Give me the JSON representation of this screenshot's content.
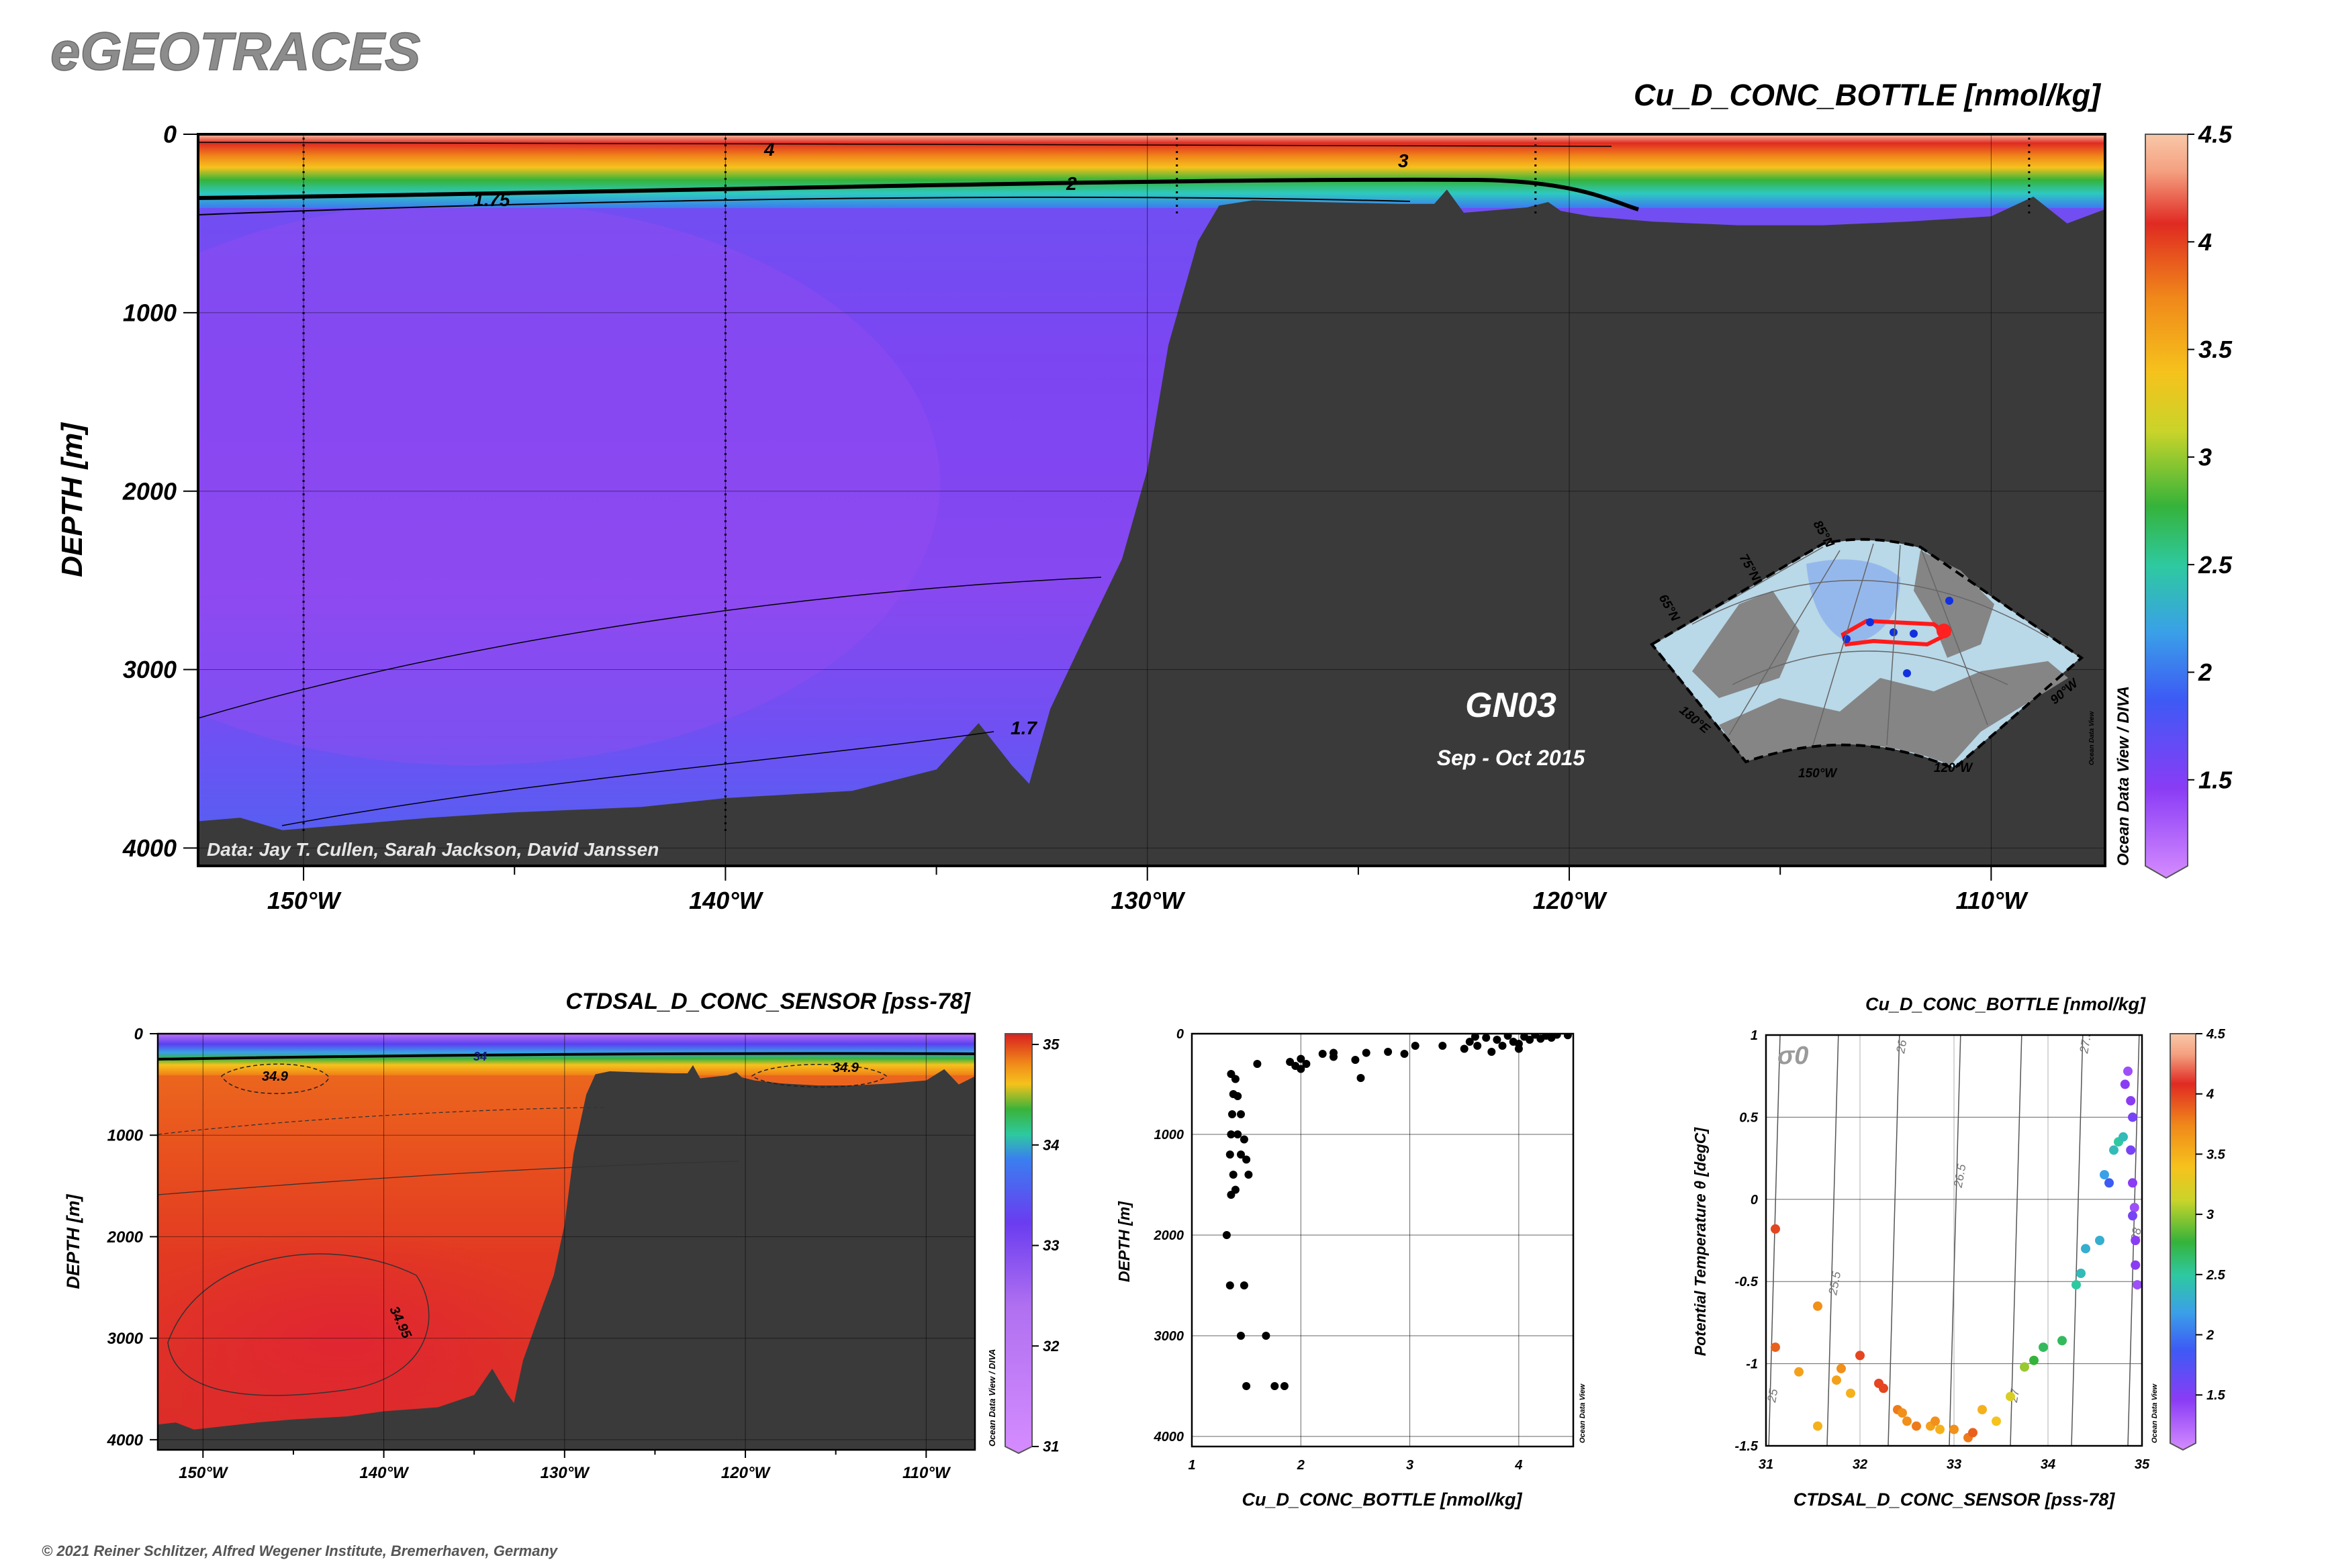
{
  "header": {
    "brand": "eGEOTRACES"
  },
  "footer": {
    "copyright": "© 2021 Reiner Schlitzer, Alfred Wegener Institute, Bremerhaven, Germany"
  },
  "watermark": {
    "odv_diva": "Ocean Data View / DIVA",
    "odv": "Ocean Data View"
  },
  "colors": {
    "seafloor": "#3a3a3a",
    "frame": "#000000",
    "contour": "#000000",
    "track": "#ff1a1a",
    "station": "#1030e0"
  },
  "chart_data": [
    {
      "id": "main_section",
      "type": "heatmap",
      "title": "Cu_D_CONC_BOTTLE [nmol/kg]",
      "ylabel": "DEPTH [m]",
      "xlabel": "",
      "xlim": [
        -152.5,
        -107.3
      ],
      "ylim": [
        4100,
        0
      ],
      "x_ticks": [
        -150,
        -140,
        -130,
        -120,
        -110
      ],
      "x_tick_labels": [
        "150°W",
        "140°W",
        "130°W",
        "120°W",
        "110°W"
      ],
      "y_ticks": [
        0,
        1000,
        2000,
        3000,
        4000
      ],
      "y_tick_labels": [
        "0",
        "1000",
        "2000",
        "3000",
        "4000"
      ],
      "colorbar": {
        "min": 1.1,
        "max": 4.5,
        "ticks": [
          1.5,
          2,
          2.5,
          3,
          3.5,
          4,
          4.5
        ],
        "tick_labels": [
          "1.5",
          "2",
          "2.5",
          "3",
          "3.5",
          "4",
          "4.5"
        ]
      },
      "contour_labels": [
        "4",
        "3",
        "2",
        "1.75",
        "1.7"
      ],
      "station_longitudes": [
        -150.0,
        -140.0,
        -129.3,
        -120.8,
        -109.1
      ],
      "seafloor": {
        "lon": [
          -152.5,
          -151.5,
          -150.5,
          -149,
          -147,
          -145,
          -142,
          -140,
          -137,
          -135,
          -134,
          -133.2,
          -132.8,
          -132.3,
          -131.5,
          -130.6,
          -130,
          -129.5,
          -128.8,
          -128.3,
          -127.5,
          -126,
          -124,
          -123.2,
          -122.9,
          -122.5,
          -121,
          -120.5,
          -120.2,
          -119.5,
          -118,
          -116,
          -114,
          -112,
          -110,
          -109,
          -108.2,
          -107.3
        ],
        "depth": [
          3850,
          3830,
          3900,
          3870,
          3830,
          3800,
          3770,
          3720,
          3680,
          3560,
          3300,
          3540,
          3640,
          3220,
          2820,
          2380,
          1880,
          1180,
          600,
          400,
          370,
          380,
          390,
          390,
          310,
          440,
          410,
          380,
          430,
          460,
          490,
          510,
          510,
          490,
          460,
          350,
          500,
          420
        ]
      },
      "inset_map": {
        "label": "GN03",
        "date": "Sep - Oct 2015",
        "lat_labels": [
          "85°N",
          "75°N",
          "65°N"
        ],
        "lon_labels": [
          "180°E",
          "150°W",
          "120°W",
          "90°W"
        ]
      },
      "data_credit": "Data: Jay T. Cullen, Sarah Jackson, David Janssen"
    },
    {
      "id": "salinity_section",
      "type": "heatmap",
      "title": "CTDSAL_D_CONC_SENSOR [pss-78]",
      "ylabel": "DEPTH [m]",
      "xlim": [
        -152.5,
        -107.3
      ],
      "ylim": [
        4100,
        0
      ],
      "x_ticks": [
        -150,
        -140,
        -130,
        -120,
        -110
      ],
      "x_tick_labels": [
        "150°W",
        "140°W",
        "130°W",
        "120°W",
        "110°W"
      ],
      "y_ticks": [
        0,
        1000,
        2000,
        3000,
        4000
      ],
      "y_tick_labels": [
        "0",
        "1000",
        "2000",
        "3000",
        "4000"
      ],
      "colorbar": {
        "min": 31,
        "max": 35,
        "ticks": [
          31,
          32,
          33,
          34,
          35
        ],
        "tick_labels": [
          "31",
          "32",
          "33",
          "34",
          "35"
        ]
      },
      "contour_labels": [
        "34",
        "34.9",
        "34.9",
        "34.95"
      ]
    },
    {
      "id": "profile",
      "type": "scatter",
      "xlabel": "Cu_D_CONC_BOTTLE [nmol/kg]",
      "ylabel": "DEPTH [m]",
      "xlim": [
        1,
        4.5
      ],
      "ylim": [
        4100,
        0
      ],
      "x_ticks": [
        1,
        2,
        3,
        4
      ],
      "x_tick_labels": [
        "1",
        "2",
        "3",
        "4"
      ],
      "y_ticks": [
        0,
        1000,
        2000,
        3000,
        4000
      ],
      "y_tick_labels": [
        "0",
        "1000",
        "2000",
        "3000",
        "4000"
      ],
      "points": [
        [
          1.36,
          400
        ],
        [
          1.4,
          450
        ],
        [
          1.38,
          600
        ],
        [
          1.42,
          620
        ],
        [
          1.37,
          800
        ],
        [
          1.45,
          800
        ],
        [
          1.36,
          1000
        ],
        [
          1.42,
          1000
        ],
        [
          1.48,
          1050
        ],
        [
          1.35,
          1200
        ],
        [
          1.45,
          1200
        ],
        [
          1.5,
          1250
        ],
        [
          1.38,
          1400
        ],
        [
          1.52,
          1400
        ],
        [
          1.4,
          1550
        ],
        [
          1.36,
          1600
        ],
        [
          1.32,
          2000
        ],
        [
          1.35,
          2500
        ],
        [
          1.48,
          2500
        ],
        [
          1.45,
          3000
        ],
        [
          1.68,
          3000
        ],
        [
          1.5,
          3500
        ],
        [
          1.76,
          3500
        ],
        [
          1.85,
          3500
        ],
        [
          1.6,
          300
        ],
        [
          1.9,
          280
        ],
        [
          1.95,
          320
        ],
        [
          2.0,
          350
        ],
        [
          2.05,
          300
        ],
        [
          2.0,
          250
        ],
        [
          2.2,
          200
        ],
        [
          2.3,
          230
        ],
        [
          2.5,
          260
        ],
        [
          2.55,
          440
        ],
        [
          2.3,
          190
        ],
        [
          2.6,
          190
        ],
        [
          2.8,
          180
        ],
        [
          2.95,
          200
        ],
        [
          3.05,
          120
        ],
        [
          3.3,
          120
        ],
        [
          3.5,
          150
        ],
        [
          3.55,
          80
        ],
        [
          3.62,
          120
        ],
        [
          3.7,
          40
        ],
        [
          3.8,
          60
        ],
        [
          3.9,
          20
        ],
        [
          3.95,
          80
        ],
        [
          4.0,
          150
        ],
        [
          4.05,
          30
        ],
        [
          4.1,
          60
        ],
        [
          4.15,
          10
        ],
        [
          4.25,
          20
        ],
        [
          4.3,
          40
        ],
        [
          4.35,
          10
        ],
        [
          4.45,
          15
        ],
        [
          3.85,
          120
        ],
        [
          3.75,
          180
        ],
        [
          4.0,
          100
        ],
        [
          3.6,
          30
        ],
        [
          4.2,
          50
        ]
      ]
    },
    {
      "id": "ts_diagram",
      "type": "scatter",
      "title": "Cu_D_CONC_BOTTLE [nmol/kg]",
      "xlabel": "CTDSAL_D_CONC_SENSOR [pss-78]",
      "ylabel": "Potential Temperature θ [degC]",
      "xlim": [
        31,
        35
      ],
      "ylim": [
        -1.5,
        1
      ],
      "x_ticks": [
        31,
        32,
        33,
        34,
        35
      ],
      "x_tick_labels": [
        "31",
        "32",
        "33",
        "34",
        "35"
      ],
      "y_ticks": [
        -1.5,
        -1,
        -0.5,
        0,
        0.5,
        1
      ],
      "y_tick_labels": [
        "-1.5",
        "-1",
        "-0.5",
        "0",
        "0.5",
        "1"
      ],
      "sigma_label": "σ0",
      "isopycnal_labels": [
        "25",
        "25.5",
        "26",
        "26.5",
        "27",
        "27.5",
        "28"
      ],
      "colorbar": {
        "min": 1.1,
        "max": 4.5,
        "ticks": [
          1.5,
          2,
          2.5,
          3,
          3.5,
          4,
          4.5
        ],
        "tick_labels": [
          "1.5",
          "2",
          "2.5",
          "3",
          "3.5",
          "4",
          "4.5"
        ]
      },
      "points": [
        [
          31.1,
          -0.18,
          4.0
        ],
        [
          31.1,
          -0.9,
          3.9
        ],
        [
          31.35,
          -1.05,
          3.6
        ],
        [
          31.55,
          -1.38,
          3.5
        ],
        [
          31.75,
          -1.1,
          3.6
        ],
        [
          31.8,
          -1.03,
          3.7
        ],
        [
          31.9,
          -1.18,
          3.5
        ],
        [
          32.0,
          -0.95,
          4.0
        ],
        [
          32.2,
          -1.12,
          4.0
        ],
        [
          32.25,
          -1.15,
          4.0
        ],
        [
          32.4,
          -1.28,
          3.8
        ],
        [
          32.45,
          -1.3,
          3.7
        ],
        [
          32.5,
          -1.35,
          3.7
        ],
        [
          32.6,
          -1.38,
          3.8
        ],
        [
          32.75,
          -1.38,
          3.6
        ],
        [
          32.8,
          -1.35,
          3.7
        ],
        [
          32.85,
          -1.4,
          3.5
        ],
        [
          33.0,
          -1.4,
          3.7
        ],
        [
          33.15,
          -1.45,
          3.8
        ],
        [
          33.2,
          -1.42,
          3.9
        ],
        [
          33.3,
          -1.28,
          3.5
        ],
        [
          33.45,
          -1.35,
          3.4
        ],
        [
          33.6,
          -1.2,
          3.2
        ],
        [
          33.75,
          -1.02,
          3.0
        ],
        [
          33.85,
          -0.98,
          2.8
        ],
        [
          33.95,
          -0.9,
          2.7
        ],
        [
          34.15,
          -0.86,
          2.7
        ],
        [
          34.3,
          -0.52,
          2.5
        ],
        [
          34.35,
          -0.45,
          2.4
        ],
        [
          34.4,
          -0.3,
          2.3
        ],
        [
          34.55,
          -0.25,
          2.3
        ],
        [
          34.6,
          0.15,
          2.2
        ],
        [
          34.65,
          0.1,
          1.9
        ],
        [
          34.7,
          0.3,
          2.4
        ],
        [
          34.75,
          0.35,
          2.5
        ],
        [
          34.8,
          0.38,
          2.4
        ],
        [
          34.85,
          0.78,
          1.4
        ],
        [
          34.82,
          0.7,
          1.5
        ],
        [
          34.88,
          0.6,
          1.5
        ],
        [
          34.9,
          0.5,
          1.6
        ],
        [
          34.88,
          0.3,
          1.6
        ],
        [
          34.9,
          0.1,
          1.5
        ],
        [
          34.92,
          -0.05,
          1.4
        ],
        [
          34.93,
          -0.25,
          1.5
        ],
        [
          34.93,
          -0.4,
          1.5
        ],
        [
          34.95,
          -0.52,
          1.4
        ],
        [
          31.55,
          -0.65,
          3.7
        ],
        [
          34.9,
          -0.1,
          1.6
        ]
      ]
    }
  ]
}
